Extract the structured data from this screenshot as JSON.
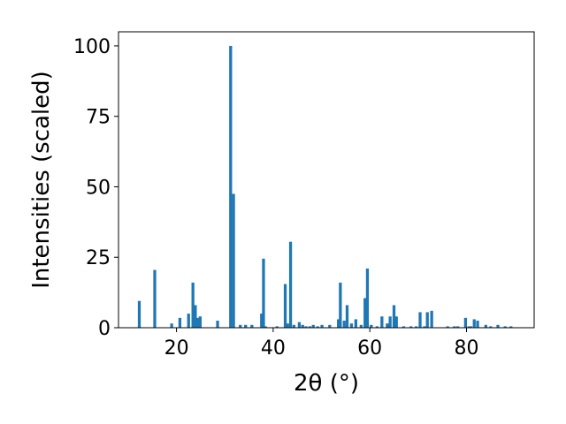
{
  "chart_data": {
    "type": "bar",
    "title": "",
    "xlabel": "2θ (°)",
    "ylabel": "Intensities (scaled)",
    "xlim": [
      8,
      94
    ],
    "ylim": [
      0,
      105
    ],
    "xticks": [
      20,
      40,
      60,
      80
    ],
    "yticks": [
      0,
      25,
      50,
      75,
      100
    ],
    "grid": false,
    "bar_color": "#1f77b4",
    "bar_width": 0.6,
    "x": [
      12.3,
      15.5,
      19.0,
      20.7,
      22.5,
      23.4,
      23.9,
      24.4,
      24.9,
      28.5,
      31.2,
      31.8,
      33.2,
      34.3,
      35.6,
      37.6,
      38.0,
      38.4,
      40.8,
      42.5,
      43.0,
      43.6,
      44.3,
      45.4,
      46.1,
      46.8,
      47.6,
      48.3,
      49.2,
      50.1,
      51.7,
      53.5,
      53.9,
      54.7,
      55.3,
      56.2,
      57.1,
      58.2,
      59.0,
      59.5,
      60.3,
      61.5,
      62.5,
      63.6,
      64.2,
      65.0,
      65.5,
      67.0,
      68.5,
      69.6,
      70.4,
      71.3,
      71.9,
      72.8,
      76.1,
      77.5,
      78.2,
      79.8,
      80.5,
      80.9,
      81.6,
      82.3,
      84.0,
      85.0,
      86.5,
      88.0,
      89.2
    ],
    "values": [
      9.5,
      20.5,
      1.5,
      3.5,
      5.0,
      16.0,
      8.0,
      3.5,
      4.0,
      2.5,
      100,
      47.5,
      1.0,
      1.0,
      1.0,
      5.0,
      24.5,
      0.5,
      0.5,
      15.5,
      1.5,
      30.5,
      1.0,
      2.0,
      1.0,
      0.5,
      0.5,
      1.0,
      0.5,
      1.0,
      1.0,
      3.0,
      16.0,
      2.5,
      8.0,
      1.5,
      3.0,
      1.0,
      10.5,
      21.0,
      1.0,
      0.5,
      4.0,
      1.5,
      4.0,
      8.0,
      4.0,
      0.5,
      0.5,
      0.5,
      5.5,
      0.5,
      5.5,
      6.0,
      0.5,
      0.5,
      0.5,
      3.5,
      0.5,
      0.5,
      3.0,
      2.5,
      1.0,
      0.5,
      1.0,
      0.5,
      0.5
    ]
  }
}
